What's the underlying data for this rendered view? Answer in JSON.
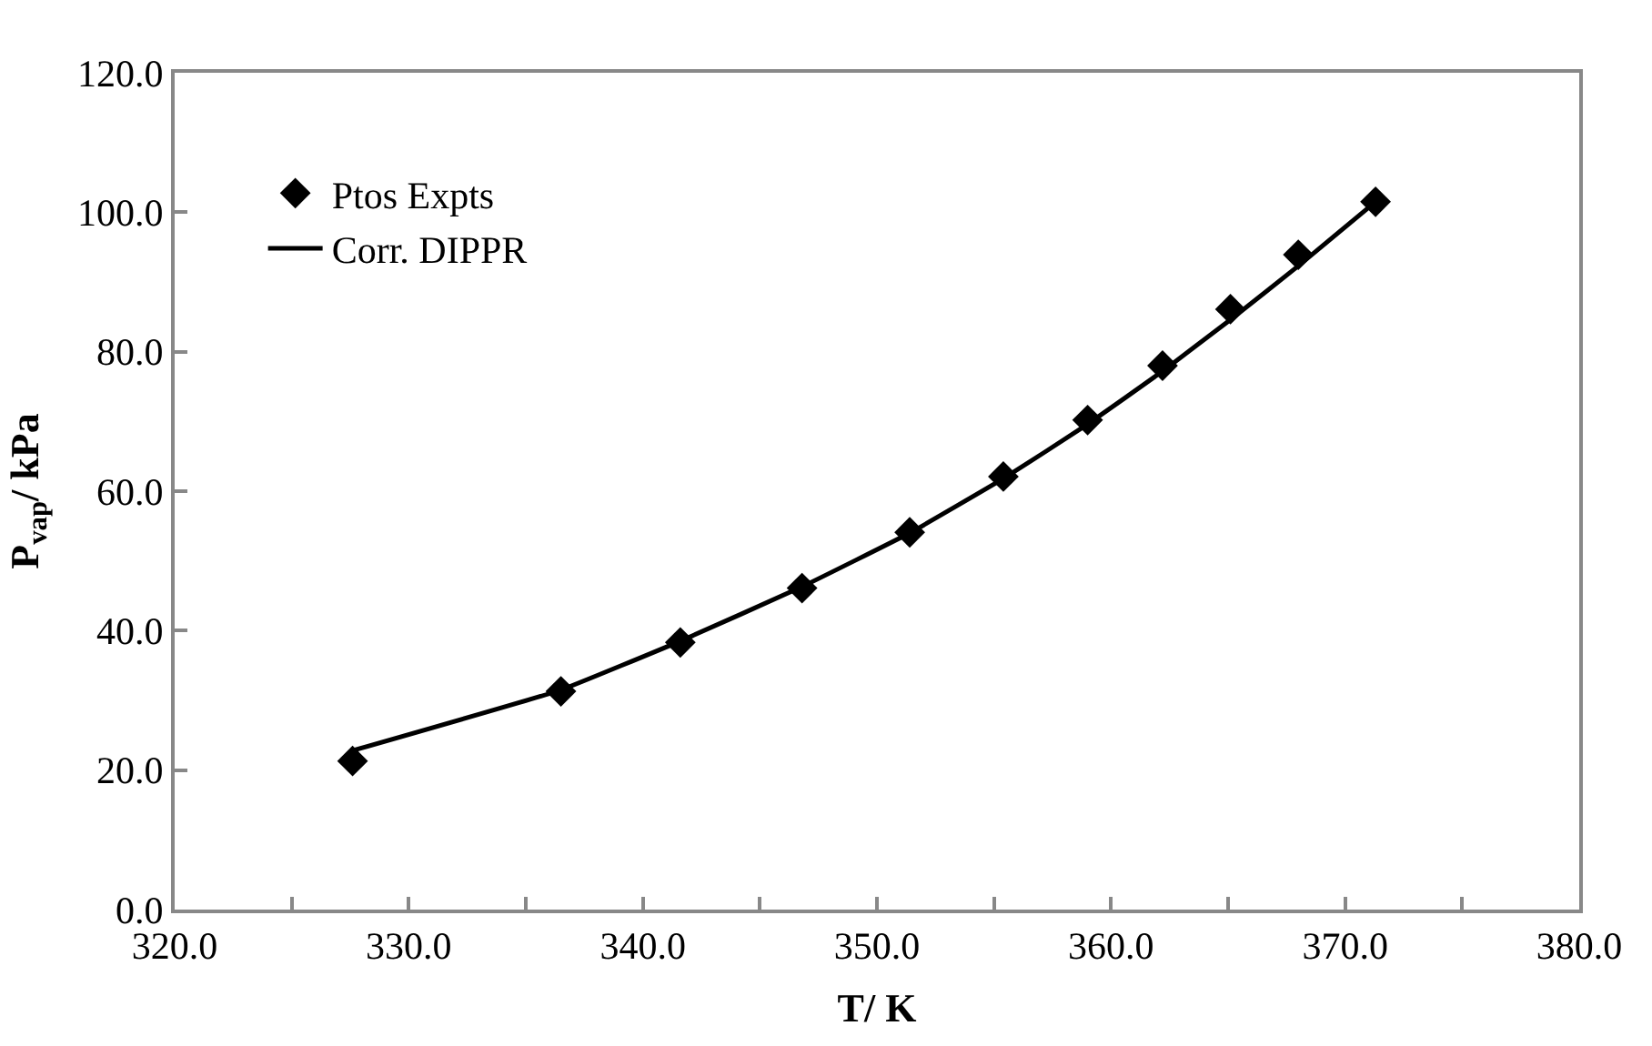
{
  "chart_data": {
    "type": "scatter",
    "xlabel": "T/ K",
    "ylabel": "P$_{vap}$/ kPa",
    "series": [
      {
        "name": "Ptos Expts",
        "color": "#000000",
        "marker": "diamond",
        "x": [
          327.6,
          336.5,
          341.6,
          346.8,
          351.4,
          355.4,
          359.0,
          362.2,
          365.1,
          368.0,
          371.3
        ],
        "values": [
          21.3,
          31.3,
          38.3,
          46.1,
          54.1,
          62.1,
          70.2,
          78.0,
          86.1,
          93.9,
          101.5
        ]
      },
      {
        "name": "Corr. DIPPR",
        "type": "line",
        "color": "#000000",
        "marker": "none",
        "line_style": "solid",
        "x": [
          327.6,
          336.5,
          341.6,
          346.8,
          351.4,
          355.4,
          359.0,
          362.2,
          365.1,
          368.0,
          371.3
        ],
        "values": [
          22.8,
          31.5,
          38.5,
          46.3,
          54.0,
          61.8,
          69.6,
          77.2,
          84.6,
          92.3,
          101.5
        ]
      }
    ],
    "xlim": [
      320,
      380
    ],
    "xticks": [
      {
        "value": 320,
        "label": "320.0"
      },
      {
        "value": 325,
        "label": null
      },
      {
        "value": 330,
        "label": "330.0"
      },
      {
        "value": 335,
        "label": null
      },
      {
        "value": 340,
        "label": "340.0"
      },
      {
        "value": 345,
        "label": null
      },
      {
        "value": 350,
        "label": "350.0"
      },
      {
        "value": 355,
        "label": null
      },
      {
        "value": 360,
        "label": "360.0"
      },
      {
        "value": 365,
        "label": null
      },
      {
        "value": 370,
        "label": "370.0"
      },
      {
        "value": 375,
        "label": null
      },
      {
        "value": 380,
        "label": "380.0"
      }
    ],
    "ylim": [
      0,
      120
    ],
    "yticks": [
      {
        "value": 0,
        "label": "0.0"
      },
      {
        "value": 20,
        "label": "20.0"
      },
      {
        "value": 40,
        "label": "40.0"
      },
      {
        "value": 60,
        "label": "60.0"
      },
      {
        "value": 80,
        "label": "80.0"
      },
      {
        "value": 100,
        "label": "100.0"
      },
      {
        "value": 120,
        "label": "120.0"
      }
    ],
    "legend": "top left"
  }
}
